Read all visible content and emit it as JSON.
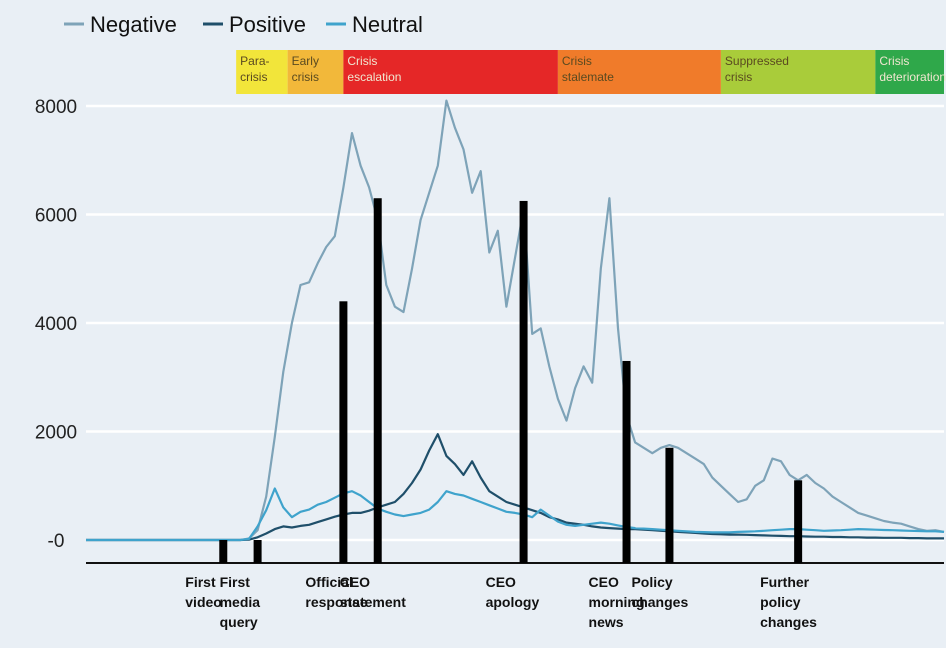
{
  "chart_data": {
    "type": "line",
    "legend": [
      {
        "name": "Negative",
        "color": "#7ea3b8"
      },
      {
        "name": "Positive",
        "color": "#1f4f6a"
      },
      {
        "name": "Neutral",
        "color": "#3fa3cc"
      }
    ],
    "legend_position": "top-left",
    "ylim": [
      0,
      8500
    ],
    "yticks": [
      {
        "value": 0,
        "label": "-0"
      },
      {
        "value": 2000,
        "label": "2000"
      },
      {
        "value": 4000,
        "label": "4000"
      },
      {
        "value": 6000,
        "label": "6000"
      },
      {
        "value": 8000,
        "label": "8000"
      }
    ],
    "grid": true,
    "x": [
      0,
      1,
      2,
      3,
      4,
      5,
      6,
      7,
      8,
      9,
      10,
      11,
      12,
      13,
      14,
      15,
      16,
      17,
      18,
      19,
      20,
      21,
      22,
      23,
      24,
      25,
      26,
      27,
      28,
      29,
      30,
      31,
      32,
      33,
      34,
      35,
      36,
      37,
      38,
      39,
      40,
      41,
      42,
      43,
      44,
      45,
      46,
      47,
      48,
      49,
      50,
      51,
      52,
      53,
      54,
      55,
      56,
      57,
      58,
      59,
      60,
      61,
      62,
      63,
      64,
      65,
      66,
      67,
      68,
      69,
      70,
      71,
      72,
      73,
      74,
      75,
      76,
      77,
      78,
      79,
      80,
      81,
      82,
      83,
      84,
      85,
      86,
      87,
      88,
      89,
      90,
      91,
      92,
      93,
      94,
      95,
      96,
      97,
      98,
      99,
      100
    ],
    "series": [
      {
        "name": "Negative",
        "values": [
          0,
          0,
          0,
          0,
          0,
          0,
          0,
          0,
          0,
          0,
          0,
          0,
          0,
          0,
          0,
          0,
          0,
          0,
          0,
          30,
          180,
          800,
          1900,
          3100,
          4000,
          4700,
          4750,
          5100,
          5400,
          5600,
          6500,
          7500,
          6900,
          6500,
          5900,
          4700,
          4300,
          4200,
          5000,
          5900,
          6400,
          6900,
          8100,
          7600,
          7200,
          6400,
          6800,
          5300,
          5700,
          4300,
          5200,
          6100,
          3800,
          3900,
          3200,
          2600,
          2200,
          2800,
          3200,
          2900,
          5000,
          6300,
          3900,
          2300,
          1800,
          1700,
          1600,
          1700,
          1750,
          1700,
          1600,
          1500,
          1400,
          1150,
          1000,
          850,
          700,
          750,
          1000,
          1100,
          1500,
          1450,
          1200,
          1100,
          1200,
          1050,
          950,
          800,
          700,
          600,
          500,
          450,
          400,
          350,
          320,
          300,
          250,
          200,
          170,
          180,
          150
        ]
      },
      {
        "name": "Positive",
        "values": [
          0,
          0,
          0,
          0,
          0,
          0,
          0,
          0,
          0,
          0,
          0,
          0,
          0,
          0,
          0,
          0,
          0,
          0,
          0,
          5,
          50,
          120,
          200,
          250,
          230,
          260,
          280,
          330,
          380,
          430,
          470,
          500,
          500,
          540,
          600,
          650,
          700,
          850,
          1050,
          1300,
          1650,
          1950,
          1550,
          1400,
          1200,
          1450,
          1150,
          900,
          800,
          700,
          650,
          600,
          550,
          500,
          420,
          380,
          320,
          300,
          280,
          250,
          230,
          220,
          210,
          200,
          200,
          190,
          180,
          170,
          160,
          150,
          140,
          130,
          120,
          110,
          105,
          100,
          100,
          95,
          90,
          85,
          80,
          75,
          70,
          70,
          65,
          60,
          60,
          55,
          55,
          50,
          50,
          45,
          45,
          40,
          40,
          40,
          35,
          35,
          30,
          30,
          30
        ]
      },
      {
        "name": "Neutral",
        "values": [
          0,
          0,
          0,
          0,
          0,
          0,
          0,
          0,
          0,
          0,
          0,
          0,
          0,
          0,
          0,
          0,
          0,
          0,
          0,
          20,
          250,
          550,
          950,
          600,
          420,
          520,
          560,
          650,
          700,
          780,
          860,
          900,
          820,
          700,
          580,
          520,
          470,
          440,
          470,
          500,
          560,
          700,
          900,
          850,
          820,
          760,
          700,
          640,
          580,
          520,
          500,
          470,
          420,
          560,
          450,
          340,
          280,
          260,
          280,
          300,
          320,
          300,
          270,
          240,
          220,
          210,
          200,
          190,
          180,
          170,
          160,
          150,
          145,
          140,
          140,
          140,
          150,
          155,
          160,
          170,
          180,
          190,
          200,
          200,
          190,
          180,
          170,
          175,
          180,
          190,
          200,
          195,
          190,
          185,
          180,
          175,
          170,
          165,
          160,
          160,
          150
        ]
      }
    ],
    "phases": [
      {
        "label_lines": [
          "Para-",
          "crisis"
        ],
        "start": 17.5,
        "end": 23.5,
        "color": "#f2e53a"
      },
      {
        "label_lines": [
          "Early",
          "crisis"
        ],
        "start": 23.5,
        "end": 30,
        "color": "#f2b83a"
      },
      {
        "label_lines": [
          "Crisis",
          "escalation"
        ],
        "start": 30,
        "end": 55,
        "color": "#e52727"
      },
      {
        "label_lines": [
          "Crisis",
          "stalemate"
        ],
        "start": 55,
        "end": 74,
        "color": "#f07b2a"
      },
      {
        "label_lines": [
          "Suppressed",
          "crisis"
        ],
        "start": 74,
        "end": 92,
        "color": "#a9cc3a"
      },
      {
        "label_lines": [
          "Crisis",
          "deterioration"
        ],
        "start": 92,
        "end": 100,
        "color": "#2fa84a"
      }
    ],
    "events": [
      {
        "label_lines": [
          "First",
          "video"
        ],
        "x": 16,
        "value": 0
      },
      {
        "label_lines": [
          "First",
          "media",
          "query"
        ],
        "x": 20,
        "value": 0
      },
      {
        "label_lines": [
          "Official",
          "response"
        ],
        "x": 30,
        "value": 4400
      },
      {
        "label_lines": [
          "CEO",
          "statement"
        ],
        "x": 34,
        "value": 6300
      },
      {
        "label_lines": [
          "CEO",
          "apology"
        ],
        "x": 51,
        "value": 6250
      },
      {
        "label_lines": [
          "CEO",
          "morning",
          "news"
        ],
        "x": 63,
        "value": 3300
      },
      {
        "label_lines": [
          "Policy",
          "changes"
        ],
        "x": 68,
        "value": 1700
      },
      {
        "label_lines": [
          "Further",
          "policy",
          "changes"
        ],
        "x": 83,
        "value": 1100
      }
    ]
  }
}
